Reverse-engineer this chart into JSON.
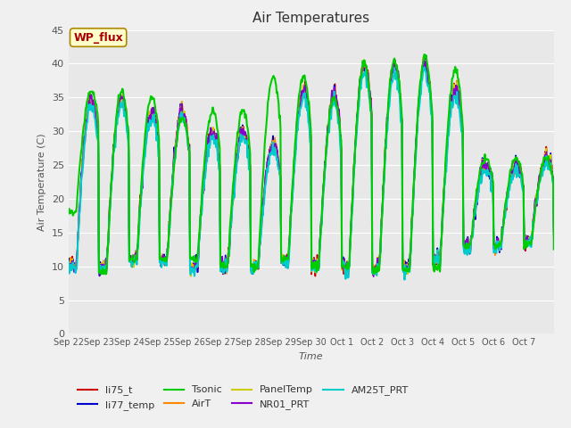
{
  "title": "Air Temperatures",
  "xlabel": "Time",
  "ylabel": "Air Temperature (C)",
  "ylim": [
    0,
    45
  ],
  "yticks": [
    0,
    5,
    10,
    15,
    20,
    25,
    30,
    35,
    40,
    45
  ],
  "xtick_labels": [
    "Sep 22",
    "Sep 23",
    "Sep 24",
    "Sep 25",
    "Sep 26",
    "Sep 27",
    "Sep 28",
    "Sep 29",
    "Sep 30",
    "Oct 1",
    "Oct 2",
    "Oct 3",
    "Oct 4",
    "Oct 5",
    "Oct 6",
    "Oct 7"
  ],
  "series": {
    "li75_t": {
      "color": "#cc0000",
      "lw": 1.2
    },
    "li77_temp": {
      "color": "#0000cc",
      "lw": 1.2
    },
    "Tsonic": {
      "color": "#00cc00",
      "lw": 1.5
    },
    "AirT": {
      "color": "#ff8800",
      "lw": 1.2
    },
    "PanelTemp": {
      "color": "#cccc00",
      "lw": 1.2
    },
    "NR01_PRT": {
      "color": "#8800cc",
      "lw": 1.2
    },
    "AM25T_PRT": {
      "color": "#00cccc",
      "lw": 1.5
    }
  },
  "wp_flux_label": "WP_flux",
  "wp_flux_text_color": "#aa0000",
  "wp_flux_bg": "#ffffcc",
  "wp_flux_border": "#aa8800",
  "plot_bg": "#e8e8e8",
  "fig_bg": "#f0f0f0",
  "n_days": 16,
  "pts_per_day": 48
}
